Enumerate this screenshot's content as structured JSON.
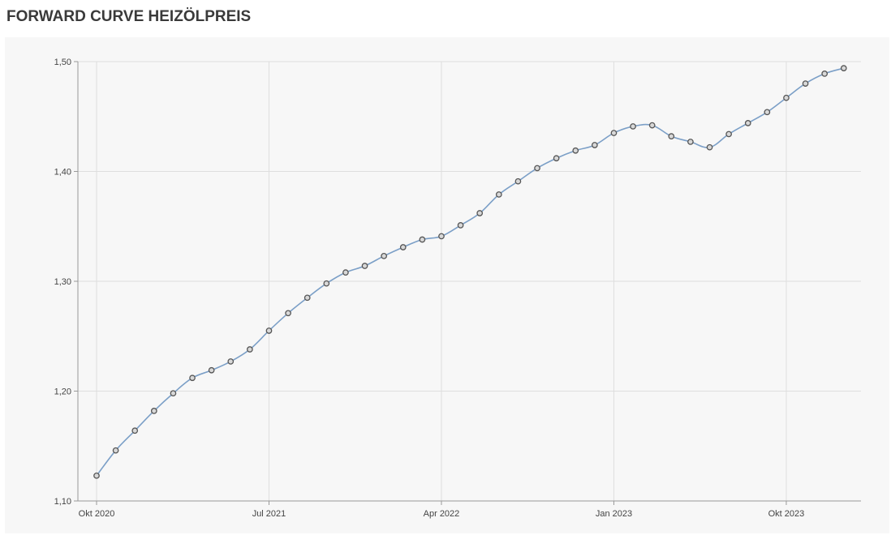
{
  "chart_data": {
    "type": "line",
    "title": "FORWARD CURVE HEIZÖLPREIS",
    "xlabel": "",
    "ylabel": "",
    "ylim": [
      1.1,
      1.5
    ],
    "y_ticks": [
      "1,10",
      "1,20",
      "1,30",
      "1,40",
      "1,50"
    ],
    "x_ticks": [
      {
        "label": "Okt 2020",
        "month_index": 0
      },
      {
        "label": "Jul 2021",
        "month_index": 9
      },
      {
        "label": "Apr 2022",
        "month_index": 18
      },
      {
        "label": "Jan 2023",
        "month_index": 27
      },
      {
        "label": "Okt 2023",
        "month_index": 36
      }
    ],
    "grid": true,
    "legend": "none",
    "line_color": "#7b9fc7",
    "marker_color": "#888888",
    "series": [
      {
        "x": [
          "2020-10",
          "2020-11",
          "2020-12",
          "2021-01",
          "2021-02",
          "2021-03",
          "2021-04",
          "2021-05",
          "2021-06",
          "2021-07",
          "2021-08",
          "2021-09",
          "2021-10",
          "2021-11",
          "2021-12",
          "2022-01",
          "2022-02",
          "2022-03",
          "2022-04",
          "2022-05",
          "2022-06",
          "2022-07",
          "2022-08",
          "2022-09",
          "2022-10",
          "2022-11",
          "2022-12",
          "2023-01",
          "2023-02",
          "2023-03",
          "2023-04",
          "2023-05",
          "2023-06",
          "2023-07",
          "2023-08",
          "2023-09",
          "2023-10",
          "2023-11",
          "2023-12",
          "2024-01"
        ],
        "values": [
          1.123,
          1.146,
          1.164,
          1.182,
          1.198,
          1.212,
          1.219,
          1.227,
          1.238,
          1.255,
          1.271,
          1.285,
          1.298,
          1.308,
          1.314,
          1.323,
          1.331,
          1.338,
          1.341,
          1.351,
          1.362,
          1.379,
          1.391,
          1.403,
          1.412,
          1.419,
          1.424,
          1.435,
          1.441,
          1.442,
          1.432,
          1.427,
          1.422,
          1.434,
          1.444,
          1.454,
          1.467,
          1.48,
          1.489,
          1.494
        ]
      }
    ]
  }
}
